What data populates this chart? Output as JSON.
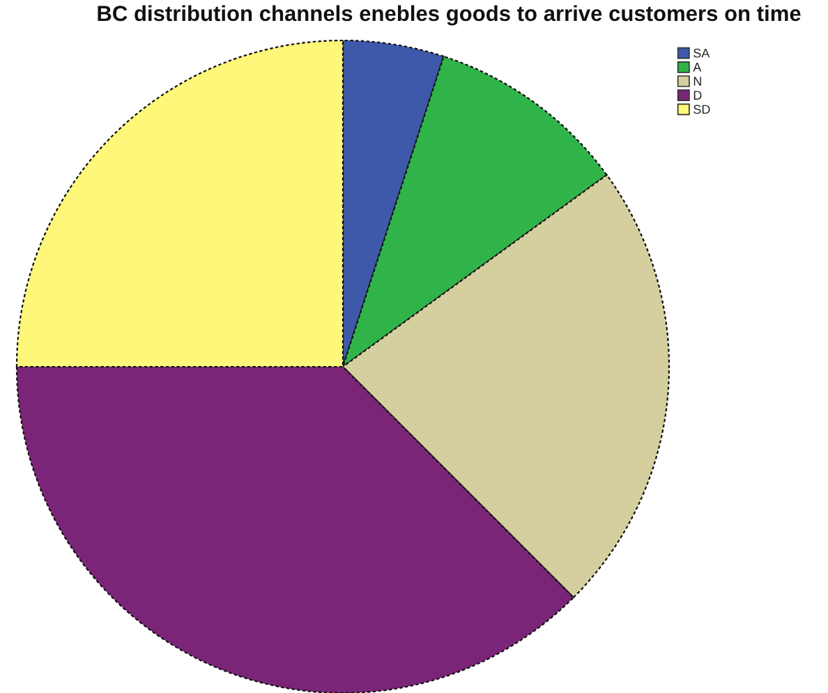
{
  "chart_data": {
    "type": "pie",
    "title": "BC distribution channels enebles goods to arrive customers on time",
    "categories": [
      "SA",
      "A",
      "N",
      "D",
      "SD"
    ],
    "values": [
      5,
      10,
      22.5,
      37.5,
      25
    ],
    "colors": [
      "#3e58aa",
      "#30b44a",
      "#d5cf9f",
      "#7a2577",
      "#fef77a"
    ],
    "legend": "top right"
  }
}
